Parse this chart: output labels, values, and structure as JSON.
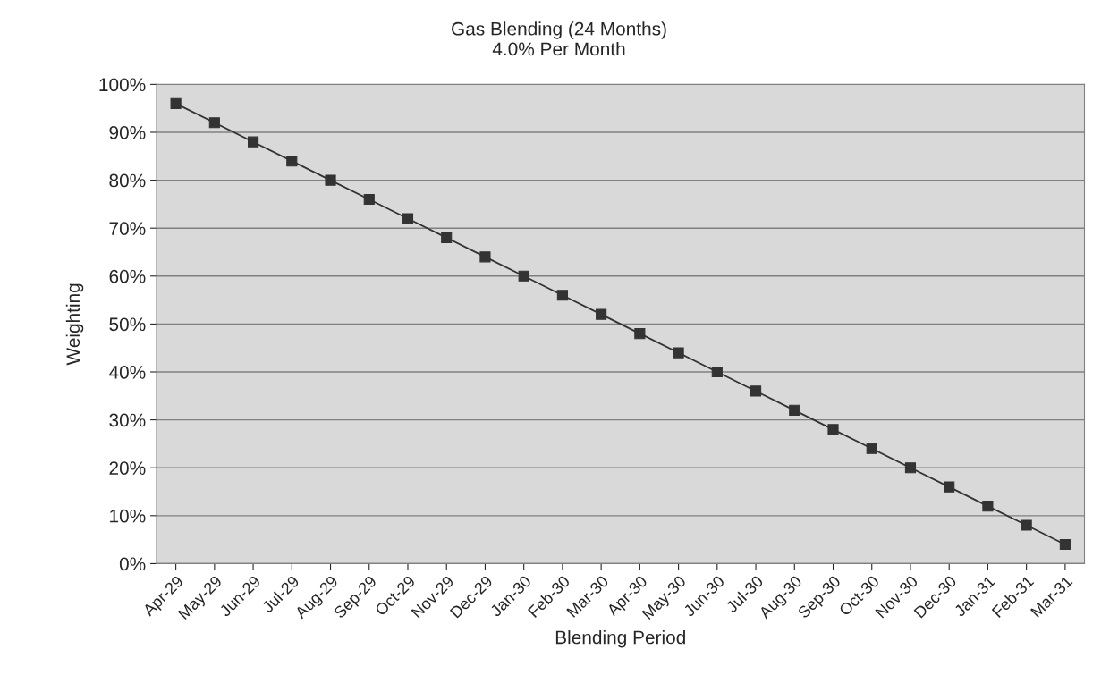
{
  "chart_data": {
    "type": "line",
    "title": "Gas Blending (24 Months)",
    "subtitle": "4.0% Per Month",
    "xlabel": "Blending Period",
    "ylabel": "Weighting",
    "categories": [
      "Apr-29",
      "May-29",
      "Jun-29",
      "Jul-29",
      "Aug-29",
      "Sep-29",
      "Oct-29",
      "Nov-29",
      "Dec-29",
      "Jan-30",
      "Feb-30",
      "Mar-30",
      "Apr-30",
      "May-30",
      "Jun-30",
      "Jul-30",
      "Aug-30",
      "Sep-30",
      "Oct-30",
      "Nov-30",
      "Dec-30",
      "Jan-31",
      "Feb-31",
      "Mar-31"
    ],
    "series": [
      {
        "color": "#333333",
        "values": [
          96,
          92,
          88,
          84,
          80,
          76,
          72,
          68,
          64,
          60,
          56,
          52,
          48,
          44,
          40,
          36,
          32,
          28,
          24,
          20,
          16,
          12,
          8,
          4
        ]
      }
    ],
    "ylim": [
      0,
      100
    ],
    "yticks": [
      {
        "value": 0,
        "label": "0%"
      },
      {
        "value": 10,
        "label": "10%"
      },
      {
        "value": 20,
        "label": "20%"
      },
      {
        "value": 30,
        "label": "30%"
      },
      {
        "value": 40,
        "label": "40%"
      },
      {
        "value": 50,
        "label": "50%"
      },
      {
        "value": 60,
        "label": "60%"
      },
      {
        "value": 70,
        "label": "70%"
      },
      {
        "value": 80,
        "label": "80%"
      },
      {
        "value": 90,
        "label": "90%"
      },
      {
        "value": 100,
        "label": "100%"
      }
    ],
    "grid": "y",
    "legend": false,
    "marker": "square",
    "line_style": "solid"
  }
}
